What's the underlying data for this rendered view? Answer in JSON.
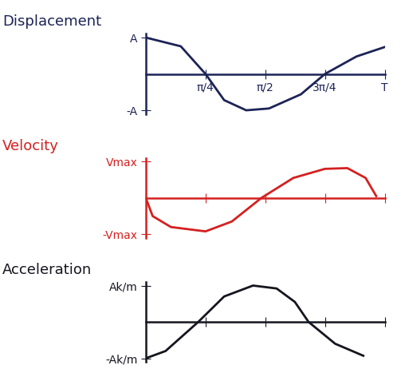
{
  "chart_data": [
    {
      "type": "line",
      "title": "Displacement",
      "color": "#1c2356",
      "x": [
        0,
        0.46,
        0.785,
        1.03,
        1.32,
        1.62,
        2.04,
        2.356,
        2.77,
        3.142
      ],
      "values": [
        1.0,
        0.76,
        0,
        -0.72,
        -1.0,
        -0.95,
        -0.56,
        0,
        0.48,
        0.74
      ],
      "xlim": [
        0,
        3.142
      ],
      "ylim": [
        -1.1,
        1.1
      ],
      "xticks": [
        {
          "value": 0.785,
          "label": "π/4"
        },
        {
          "value": 1.571,
          "label": "π/2"
        },
        {
          "value": 2.356,
          "label": "3π/4"
        },
        {
          "value": 3.142,
          "label": "T"
        }
      ],
      "yticks": [
        {
          "value": 1,
          "label": "A"
        },
        {
          "value": -1,
          "label": "-A"
        }
      ],
      "grid": false
    },
    {
      "type": "line",
      "title": "Velocity",
      "color": "#d42020",
      "x": [
        0,
        0.09,
        0.33,
        0.785,
        1.13,
        1.52,
        1.94,
        2.356,
        2.65,
        2.89,
        3.03
      ],
      "values": [
        0,
        -0.5,
        -0.8,
        -0.92,
        -0.65,
        0,
        0.55,
        0.8,
        0.82,
        0.55,
        0.05
      ],
      "xlim": [
        0,
        3.142
      ],
      "ylim": [
        -1.1,
        1.1
      ],
      "xticks": [
        0.785,
        1.571,
        2.356,
        3.142
      ],
      "yticks": [
        {
          "value": 1,
          "label": "Vmax"
        },
        {
          "value": -1,
          "label": "-Vmax"
        }
      ],
      "tick_labels": "y",
      "grid": false
    },
    {
      "type": "line",
      "title": "Acceleration",
      "color": "#15151f",
      "x": [
        0,
        0.26,
        0.69,
        1.03,
        1.41,
        1.72,
        1.96,
        2.14,
        2.49,
        2.86
      ],
      "values": [
        -1.0,
        -0.8,
        0,
        0.7,
        1.0,
        0.92,
        0.55,
        0,
        -0.6,
        -0.93
      ],
      "xlim": [
        0,
        3.142
      ],
      "ylim": [
        -1.1,
        1.1
      ],
      "xticks": [
        0.785,
        1.571,
        2.356,
        3.142
      ],
      "yticks": [
        {
          "value": 1,
          "label": "Ak/m"
        },
        {
          "value": -1,
          "label": "-Ak/m"
        }
      ],
      "tick_labels": "y",
      "grid": false
    }
  ]
}
